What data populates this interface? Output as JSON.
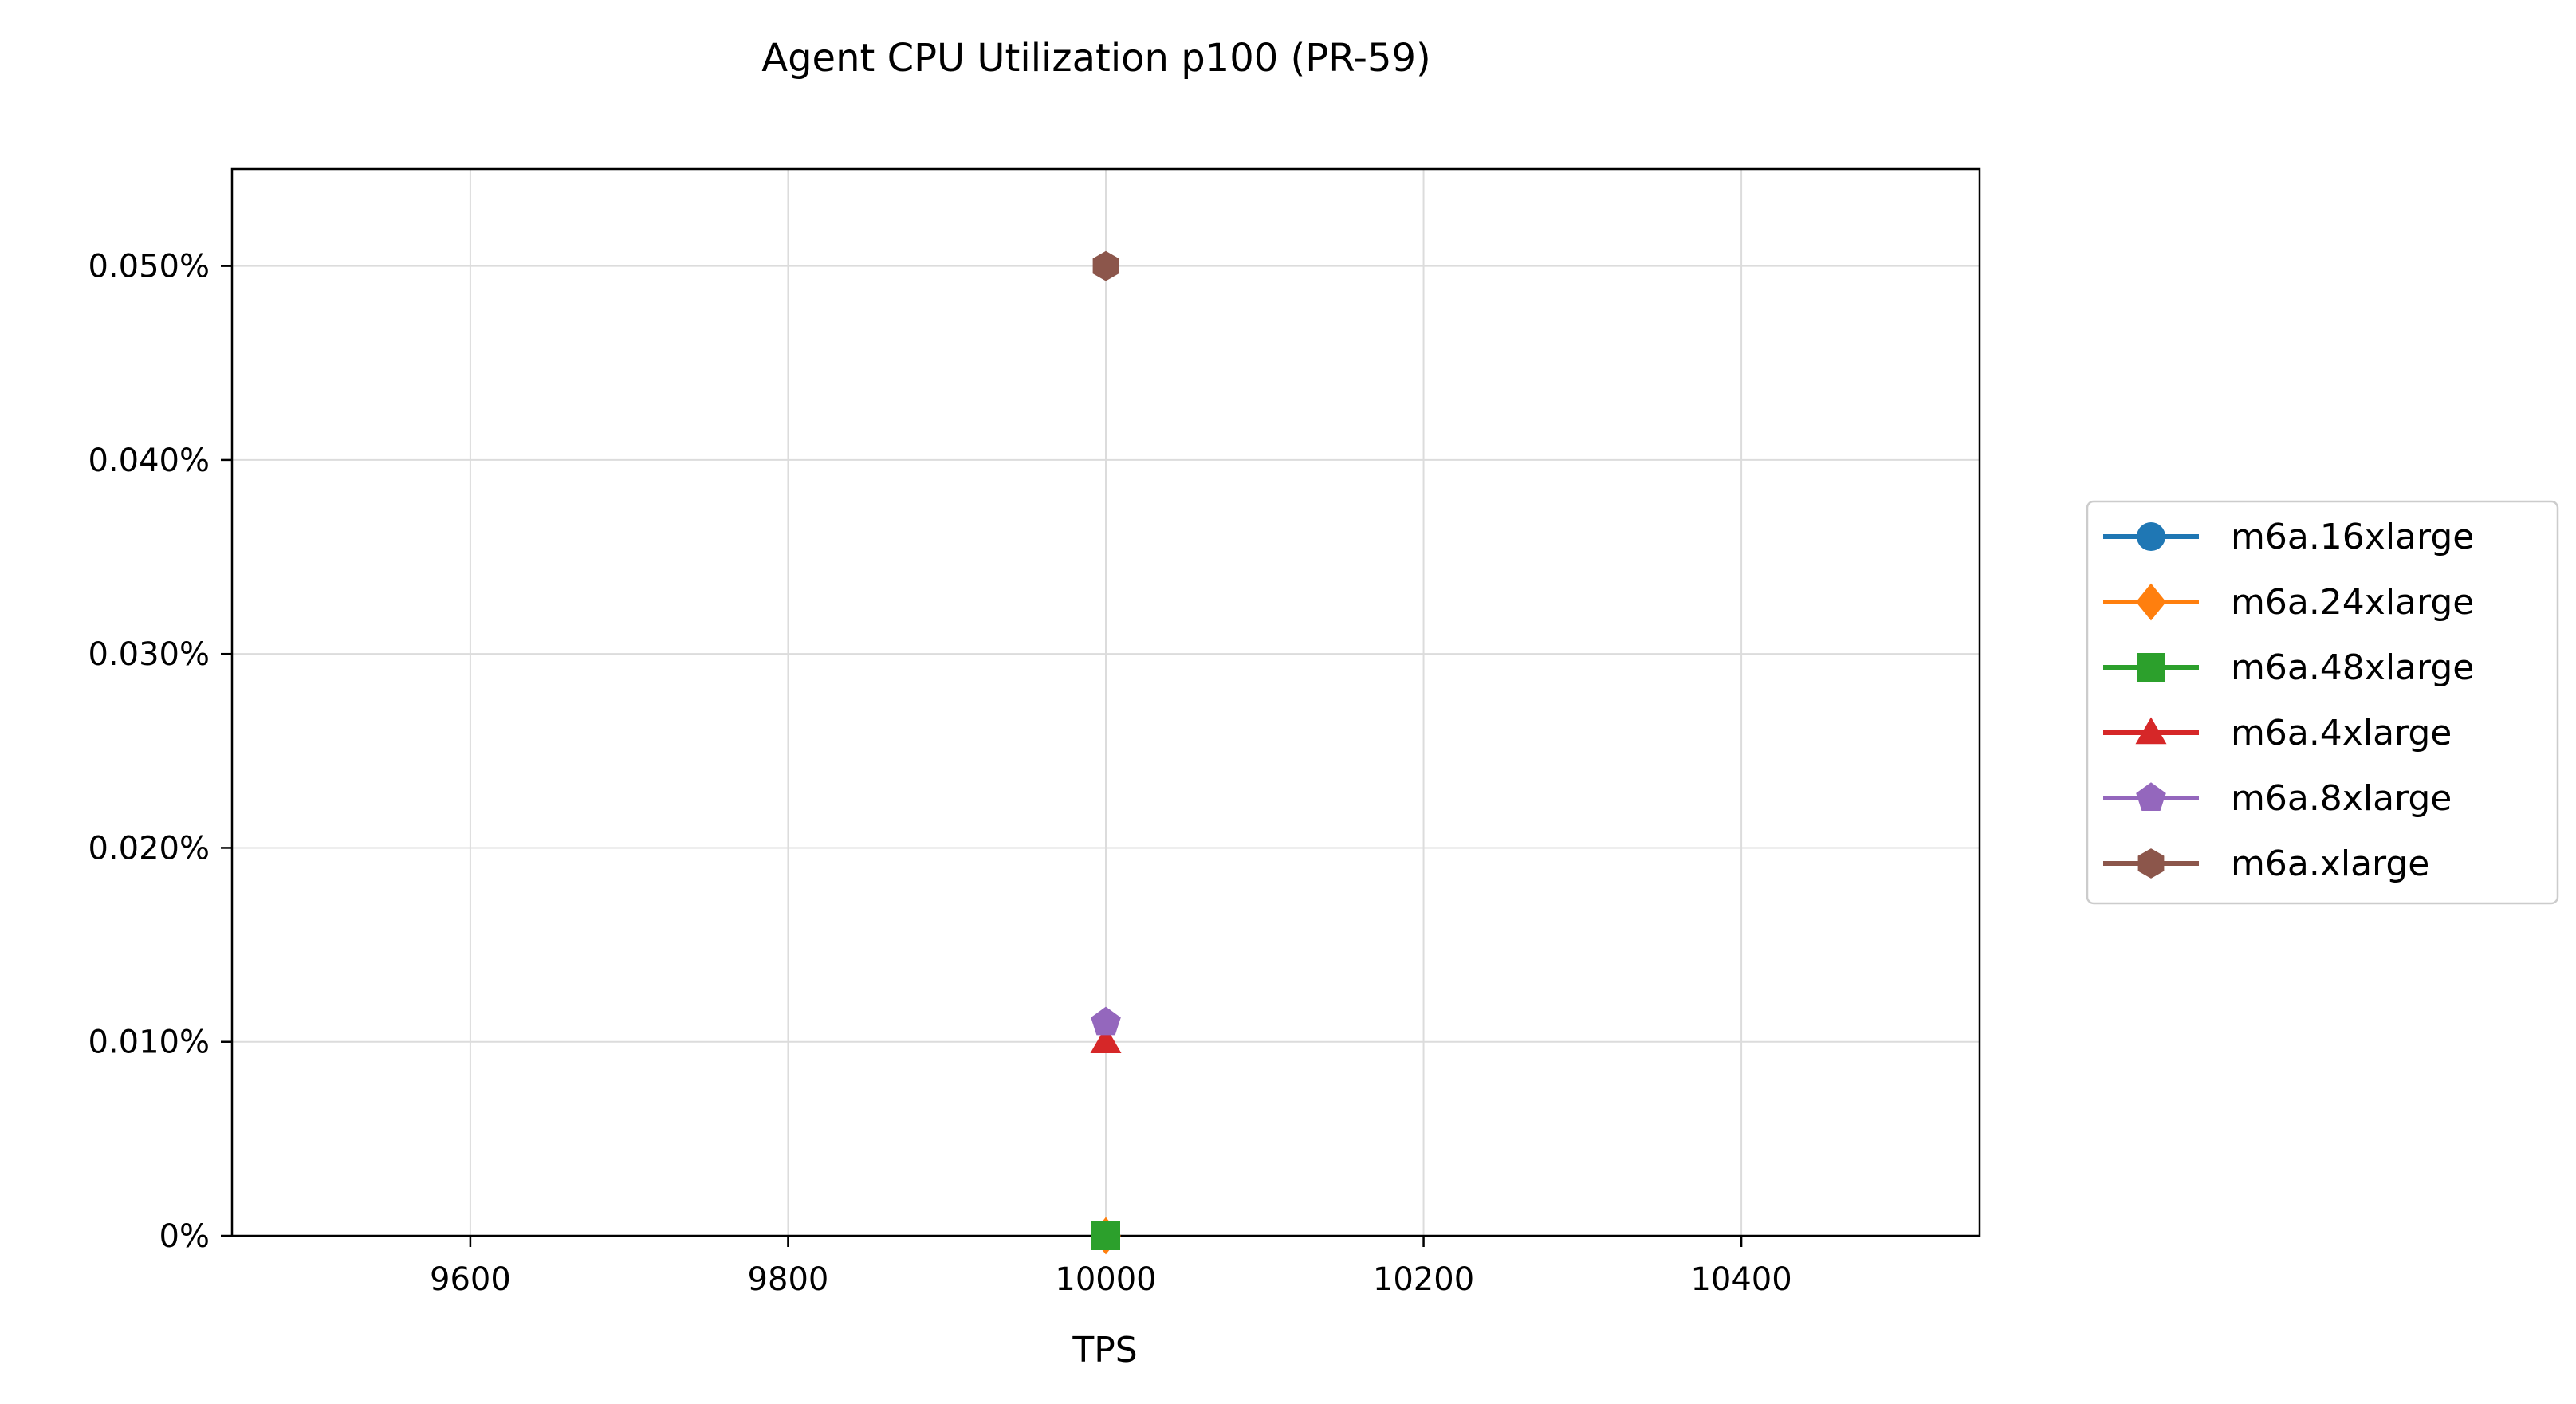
{
  "chart_data": {
    "type": "line",
    "title": "Agent CPU Utilization p100 (PR-59)",
    "xlabel": "TPS",
    "ylabel": "",
    "xlim": [
      9450,
      10550
    ],
    "ylim": [
      0,
      0.055
    ],
    "x_ticks": [
      9600,
      9800,
      10000,
      10200,
      10400
    ],
    "x_tick_labels": [
      "9600",
      "9800",
      "10000",
      "10200",
      "10400"
    ],
    "y_ticks": [
      0,
      0.01,
      0.02,
      0.03,
      0.04,
      0.05
    ],
    "y_tick_labels": [
      "0%",
      "0.010%",
      "0.020%",
      "0.030%",
      "0.040%",
      "0.050%"
    ],
    "y_unit": "%",
    "grid": true,
    "legend_position": "right-outside",
    "series": [
      {
        "name": "m6a.16xlarge",
        "color": "#1f77b4",
        "marker": "circle",
        "x": [
          10000
        ],
        "y": [
          0.0
        ]
      },
      {
        "name": "m6a.24xlarge",
        "color": "#ff7f0e",
        "marker": "diamond",
        "x": [
          10000
        ],
        "y": [
          0.0
        ]
      },
      {
        "name": "m6a.48xlarge",
        "color": "#2ca02c",
        "marker": "square",
        "x": [
          10000
        ],
        "y": [
          0.0
        ]
      },
      {
        "name": "m6a.4xlarge",
        "color": "#d62728",
        "marker": "triangle",
        "x": [
          10000
        ],
        "y": [
          0.01
        ]
      },
      {
        "name": "m6a.8xlarge",
        "color": "#9467bd",
        "marker": "pentagon",
        "x": [
          10000
        ],
        "y": [
          0.011
        ]
      },
      {
        "name": "m6a.xlarge",
        "color": "#8c564b",
        "marker": "hexagon",
        "x": [
          10000
        ],
        "y": [
          0.05
        ]
      }
    ]
  }
}
